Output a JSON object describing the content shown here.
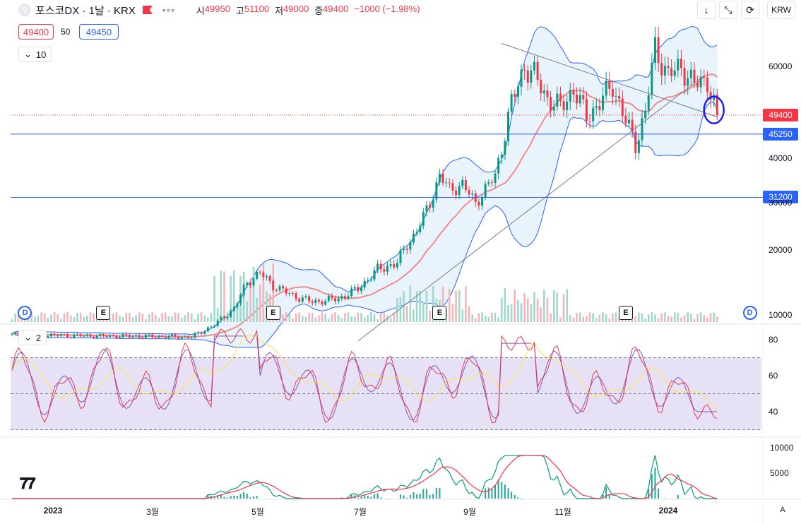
{
  "header": {
    "symbol": "포스코DX · 1날 · KRX",
    "ohlc": [
      {
        "k": "시",
        "v": "49950"
      },
      {
        "k": "고",
        "v": "51100"
      },
      {
        "k": "저",
        "v": "49000"
      },
      {
        "k": "종",
        "v": "49400"
      }
    ],
    "change": "−1000 (−1.98%)",
    "bid": "49400",
    "spread": "50",
    "ask": "49450",
    "indicator_count": "10",
    "currency": "KRW",
    "toolbar_icons": [
      "arrow-down-icon",
      "collapse-icon",
      "refresh-icon"
    ]
  },
  "chart_data": [
    {
      "type": "candlestick",
      "title": "포스코DX · 1날 · KRX",
      "x_ticks": [
        "2023",
        "3월",
        "5월",
        "7월",
        "9월",
        "11월",
        "2024"
      ],
      "y_ticks": [
        10000,
        20000,
        30000,
        40000,
        60000
      ],
      "ylim": [
        5000,
        70000
      ],
      "price_levels": [
        {
          "label": "49400",
          "value": 49400,
          "color": "#f23645"
        },
        {
          "label": "45250",
          "value": 45250,
          "color": "#2962ff"
        },
        {
          "label": "31200",
          "value": 31200,
          "color": "#2962ff"
        }
      ],
      "close_path": [
        {
          "i": 0,
          "v": 7000
        },
        {
          "i": 20,
          "v": 6800
        },
        {
          "i": 40,
          "v": 6700
        },
        {
          "i": 55,
          "v": 6600
        },
        {
          "i": 62,
          "v": 8500
        },
        {
          "i": 68,
          "v": 11000
        },
        {
          "i": 72,
          "v": 15000
        },
        {
          "i": 76,
          "v": 16500
        },
        {
          "i": 80,
          "v": 14500
        },
        {
          "i": 86,
          "v": 13000
        },
        {
          "i": 92,
          "v": 12000
        },
        {
          "i": 100,
          "v": 12500
        },
        {
          "i": 106,
          "v": 14000
        },
        {
          "i": 112,
          "v": 17000
        },
        {
          "i": 118,
          "v": 18000
        },
        {
          "i": 124,
          "v": 24000
        },
        {
          "i": 128,
          "v": 30000
        },
        {
          "i": 131,
          "v": 36000
        },
        {
          "i": 134,
          "v": 33000
        },
        {
          "i": 138,
          "v": 34000
        },
        {
          "i": 142,
          "v": 30000
        },
        {
          "i": 148,
          "v": 36000
        },
        {
          "i": 153,
          "v": 52000
        },
        {
          "i": 157,
          "v": 60000
        },
        {
          "i": 160,
          "v": 58000
        },
        {
          "i": 164,
          "v": 53000
        },
        {
          "i": 168,
          "v": 51000
        },
        {
          "i": 172,
          "v": 55000
        },
        {
          "i": 176,
          "v": 49000
        },
        {
          "i": 180,
          "v": 52000
        },
        {
          "i": 184,
          "v": 56000
        },
        {
          "i": 188,
          "v": 48000
        },
        {
          "i": 191,
          "v": 43000
        },
        {
          "i": 194,
          "v": 50000
        },
        {
          "i": 197,
          "v": 64000
        },
        {
          "i": 201,
          "v": 58000
        },
        {
          "i": 205,
          "v": 60000
        },
        {
          "i": 209,
          "v": 56000
        },
        {
          "i": 213,
          "v": 57000
        },
        {
          "i": 216,
          "v": 49400
        }
      ],
      "markers": [
        {
          "type": "D",
          "i": 4
        },
        {
          "type": "E",
          "i": 28
        },
        {
          "type": "E",
          "i": 80
        },
        {
          "type": "E",
          "i": 131
        },
        {
          "type": "E",
          "i": 188
        },
        {
          "type": "D",
          "i": 226
        }
      ]
    },
    {
      "type": "line",
      "series_type": "rsi",
      "y_ticks": [
        40,
        60,
        80
      ],
      "ylim": [
        25,
        90
      ],
      "collapse_label": "2"
    },
    {
      "type": "line",
      "series_type": "macd",
      "y_ticks": [
        5000,
        10000
      ],
      "ylim": [
        0,
        11000
      ]
    }
  ],
  "x_axis": {
    "mode_label": "A"
  }
}
